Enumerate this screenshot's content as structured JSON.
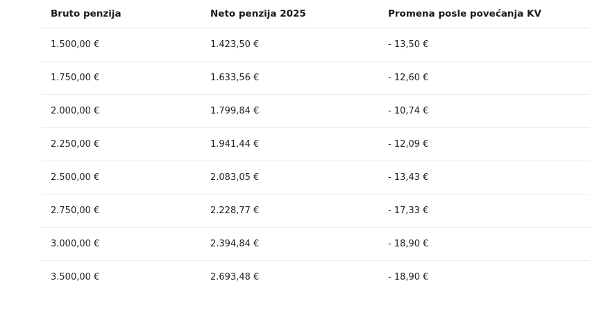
{
  "table": {
    "headers": [
      "Bruto penzija",
      "Neto penzija 2025",
      "Promena posle povećanja KV"
    ],
    "rows": [
      [
        "1.500,00 €",
        "1.423,50 €",
        "- 13,50 €"
      ],
      [
        "1.750,00 €",
        "1.633,56 €",
        "- 12,60 €"
      ],
      [
        "2.000,00 €",
        "1.799,84 €",
        "- 10,74 €"
      ],
      [
        "2.250,00 €",
        "1.941,44 €",
        "- 12,09 €"
      ],
      [
        "2.500,00 €",
        "2.083,05 €",
        "- 13,43 €"
      ],
      [
        "2.750,00 €",
        "2.228,77 €",
        "- 17,33 €"
      ],
      [
        "3.000,00 €",
        "2.394,84 €",
        "- 18,90 €"
      ],
      [
        "3.500,00 €",
        "2.693,48 €",
        "- 18,90 €"
      ]
    ]
  }
}
